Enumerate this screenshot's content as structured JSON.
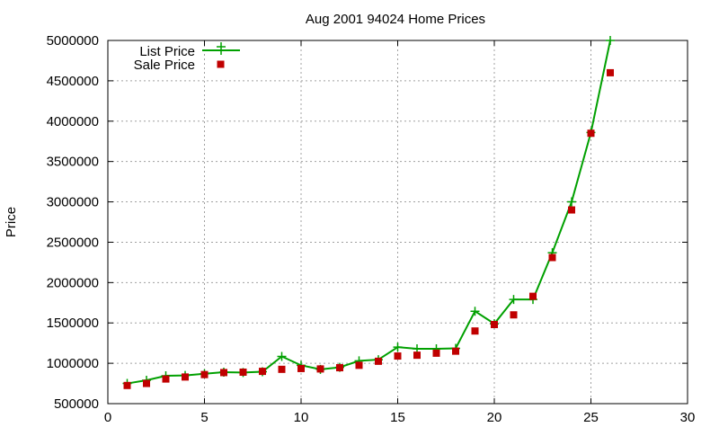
{
  "chart_data": {
    "type": "line",
    "title": "Aug 2001 94024 Home Prices",
    "xlabel": "",
    "ylabel": "Price",
    "xlim": [
      0,
      30
    ],
    "ylim": [
      500000,
      5000000
    ],
    "xticks": [
      0,
      5,
      10,
      15,
      20,
      25,
      30
    ],
    "yticks": [
      500000,
      1000000,
      1500000,
      2000000,
      2500000,
      3000000,
      3500000,
      4000000,
      4500000,
      5000000
    ],
    "grid": true,
    "legend_position": "top-left",
    "series": [
      {
        "name": "List Price",
        "style": "line-with-plus-markers",
        "color": "#00a000",
        "x": [
          1,
          2,
          3,
          4,
          5,
          6,
          7,
          8,
          9,
          10,
          11,
          12,
          13,
          14,
          15,
          16,
          17,
          18,
          19,
          20,
          21,
          22,
          23,
          24,
          25,
          26
        ],
        "y": [
          750000,
          790000,
          845000,
          850000,
          870000,
          890000,
          885000,
          895000,
          1085000,
          975000,
          925000,
          950000,
          1030000,
          1045000,
          1200000,
          1180000,
          1180000,
          1185000,
          1645000,
          1490000,
          1790000,
          1790000,
          2370000,
          3000000,
          3860000,
          5000000
        ]
      },
      {
        "name": "Sale Price",
        "style": "square-points",
        "color": "#c00000",
        "x": [
          1,
          2,
          3,
          4,
          5,
          6,
          7,
          8,
          9,
          10,
          11,
          12,
          13,
          14,
          15,
          16,
          17,
          18,
          19,
          20,
          21,
          22,
          23,
          24,
          25,
          26
        ],
        "y": [
          725000,
          750000,
          805000,
          830000,
          860000,
          885000,
          890000,
          900000,
          925000,
          935000,
          930000,
          945000,
          975000,
          1025000,
          1090000,
          1100000,
          1125000,
          1150000,
          1400000,
          1480000,
          1600000,
          1830000,
          2310000,
          2900000,
          3850000,
          4600000
        ]
      }
    ]
  }
}
